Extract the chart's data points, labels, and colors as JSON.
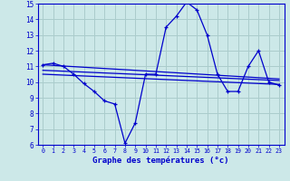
{
  "xlabel": "Graphe des températures (°c)",
  "bg_color": "#cce8e8",
  "grid_color": "#aacccc",
  "line_color": "#0000cc",
  "xlim": [
    -0.5,
    23.5
  ],
  "ylim": [
    6,
    15
  ],
  "yticks": [
    6,
    7,
    8,
    9,
    10,
    11,
    12,
    13,
    14,
    15
  ],
  "xticks": [
    0,
    1,
    2,
    3,
    4,
    5,
    6,
    7,
    8,
    9,
    10,
    11,
    12,
    13,
    14,
    15,
    16,
    17,
    18,
    19,
    20,
    21,
    22,
    23
  ],
  "series1_x": [
    0,
    1,
    2,
    3,
    4,
    5,
    6,
    7,
    8,
    9,
    10,
    11,
    12,
    13,
    14,
    15,
    16,
    17,
    18,
    19,
    20,
    21,
    22,
    23
  ],
  "series1_y": [
    11.1,
    11.2,
    11.0,
    10.5,
    9.9,
    9.4,
    8.8,
    8.6,
    6.1,
    7.4,
    10.5,
    10.5,
    13.5,
    14.2,
    15.1,
    14.6,
    13.0,
    10.5,
    9.4,
    9.4,
    11.0,
    12.0,
    10.0,
    9.8
  ],
  "series2_x": [
    0,
    23
  ],
  "series2_y": [
    11.1,
    10.2
  ],
  "series3_x": [
    0,
    23
  ],
  "series3_y": [
    10.75,
    10.1
  ],
  "series4_x": [
    0,
    23
  ],
  "series4_y": [
    10.5,
    9.85
  ]
}
